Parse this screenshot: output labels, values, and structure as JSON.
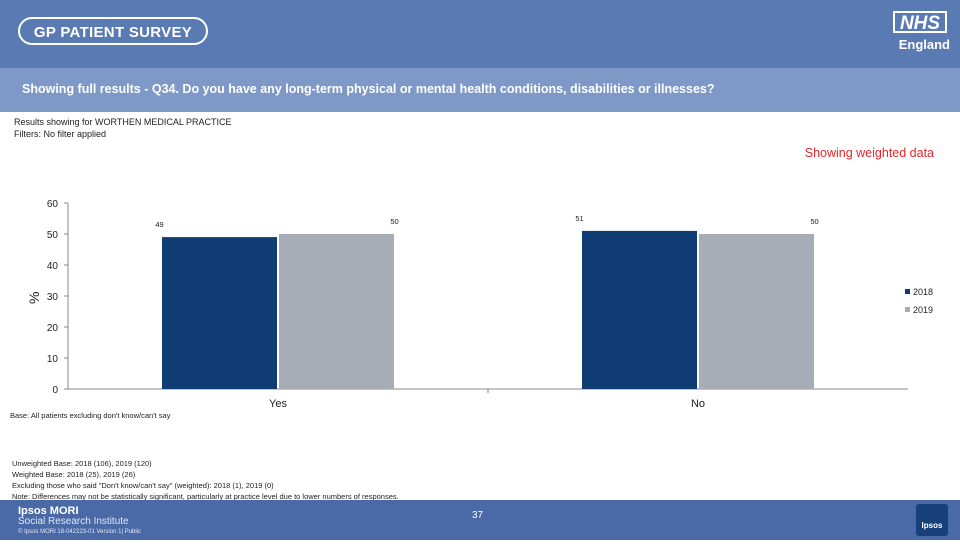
{
  "header": {
    "survey_logo": "GP PATIENT SURVEY",
    "nhs_logo": "NHS",
    "nhs_sub": "England"
  },
  "question": "Showing full results - Q34.  Do you have any long-term physical or mental health conditions, disabilities or illnesses?",
  "meta": {
    "results_for": "Results showing for WORTHEN MEDICAL PRACTICE",
    "filters": "Filters: No filter applied"
  },
  "weighted_label": "Showing weighted data",
  "base_note": "Base: All patients excluding don't know/can't say",
  "notes": [
    "Unweighted Base: 2018 (106), 2019 (120)",
    "Weighted Base: 2018 (25), 2019 (26)",
    "Excluding those who said \"Don't know/can't say\" (weighted):  2018 (1), 2019 (0)",
    "Note: Differences may not be statistically significant, particularly at practice level due to lower numbers of responses."
  ],
  "footer": {
    "org_name": "Ipsos MORI",
    "org_sub": "Social Research Institute",
    "copyright": "© Ipsos MORI     18-042223-01 Version 1| Public",
    "page_number": "37",
    "logo_text": "Ipsos"
  },
  "colors": {
    "series_2018": "#0f3c73",
    "series_2019": "#a7adb6",
    "header": "#5a7ab4",
    "accent_red": "#e8262b"
  },
  "chart_data": {
    "type": "bar",
    "ylabel": "%",
    "xlabel": "",
    "ylim": [
      0,
      60
    ],
    "yticks": [
      0,
      10,
      20,
      30,
      40,
      50,
      60
    ],
    "categories": [
      "Yes",
      "No"
    ],
    "series": [
      {
        "name": "2018",
        "values": [
          49,
          51
        ],
        "labels": [
          "49",
          "51"
        ]
      },
      {
        "name": "2019",
        "values": [
          50,
          50
        ],
        "labels": [
          "50",
          "50"
        ]
      }
    ],
    "legend_position": "right"
  }
}
